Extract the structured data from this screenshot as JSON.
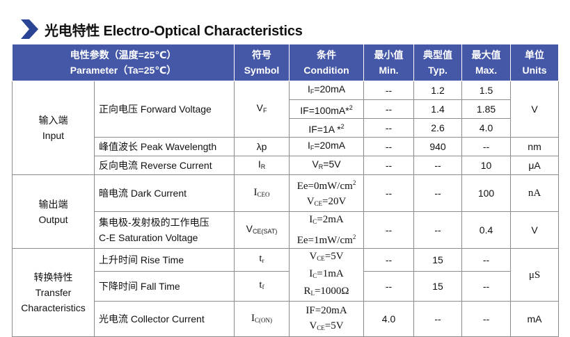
{
  "title": "光电特性 Electro-Optical Characteristics",
  "table": {
    "header": [
      {
        "lines": [
          "电性参数（温度=25℃）",
          "Parameter（Ta=25℃）"
        ]
      },
      {
        "lines": [
          "符号",
          "Symbol"
        ]
      },
      {
        "lines": [
          "条件",
          "Condition"
        ]
      },
      {
        "lines": [
          "最小值",
          "Min."
        ]
      },
      {
        "lines": [
          "典型值",
          "Typ."
        ]
      },
      {
        "lines": [
          "最大值",
          "Max."
        ]
      },
      {
        "lines": [
          "单位",
          "Units"
        ]
      }
    ],
    "body": [
      [
        {
          "lines": [
            "输入端",
            "Input"
          ]
        },
        "正向电压 Forward Voltage",
        [
          "V",
          {
            "sub": "F"
          }
        ],
        [
          "I",
          {
            "sub": "F"
          },
          "=20mA"
        ],
        "--",
        "1.2",
        "1.5",
        "V"
      ],
      [
        [
          "IF=100mA*",
          {
            "sup": "2"
          }
        ],
        "--",
        "1.4",
        "1.85"
      ],
      [
        [
          "IF=1A *",
          {
            "sup": "2"
          }
        ],
        "--",
        "2.6",
        "4.0"
      ],
      [
        "峰值波长 Peak Wavelength",
        "λp",
        [
          "I",
          {
            "sub": "F"
          },
          "=20mA"
        ],
        "--",
        "940",
        "--",
        "nm"
      ],
      [
        "反向电流 Reverse Current",
        [
          "I",
          {
            "sub": "R"
          }
        ],
        [
          "V",
          {
            "sub": "R"
          },
          "=5V"
        ],
        "--",
        "--",
        "10",
        "μA"
      ],
      [
        {
          "lines": [
            "输出端",
            "Output"
          ]
        },
        "暗电流 Dark Current",
        [
          "I",
          {
            "sub": "CEO"
          }
        ],
        {
          "lines": [
            [
              "Ee=0mW/cm",
              {
                "sup": "2"
              }
            ],
            [
              "V",
              {
                "sub": "CE"
              },
              "=20V"
            ]
          ]
        },
        "--",
        "--",
        "100",
        "nA"
      ],
      [
        {
          "lines": [
            "集电极-发射极的工作电压",
            "C-E Saturation Voltage"
          ]
        },
        [
          "V",
          {
            "sub": "CE(SAT)"
          }
        ],
        {
          "lines": [
            [
              "I",
              {
                "sub": "C"
              },
              "=2mA"
            ],
            [
              "Ee=1mW/cm",
              {
                "sup": "2"
              }
            ]
          ]
        },
        "--",
        "--",
        "0.4",
        "V"
      ],
      [
        {
          "lines": [
            "转换特性",
            "Transfer",
            "Characteristics"
          ]
        },
        "上升时间 Rise Time",
        [
          "t",
          {
            "sub": "r"
          }
        ],
        {
          "lines": [
            [
              "V",
              {
                "sub": "CE"
              },
              "=5V"
            ],
            [
              "I",
              {
                "sub": "C"
              },
              "=1mA"
            ],
            [
              "R",
              {
                "sub": "L"
              },
              "=1000Ω"
            ]
          ]
        },
        "--",
        "15",
        "--",
        "μS"
      ],
      [
        "下降时间 Fall Time",
        [
          "t",
          {
            "sub": "f"
          }
        ],
        "--",
        "15",
        "--"
      ],
      [
        "光电流 Collector Current",
        [
          "I",
          {
            "sub": "C(ON)"
          }
        ],
        {
          "lines": [
            "IF=20mA",
            [
              "V",
              {
                "sub": "CE"
              },
              "=5V"
            ]
          ]
        },
        "4.0",
        "--",
        "--",
        "mA"
      ]
    ]
  }
}
